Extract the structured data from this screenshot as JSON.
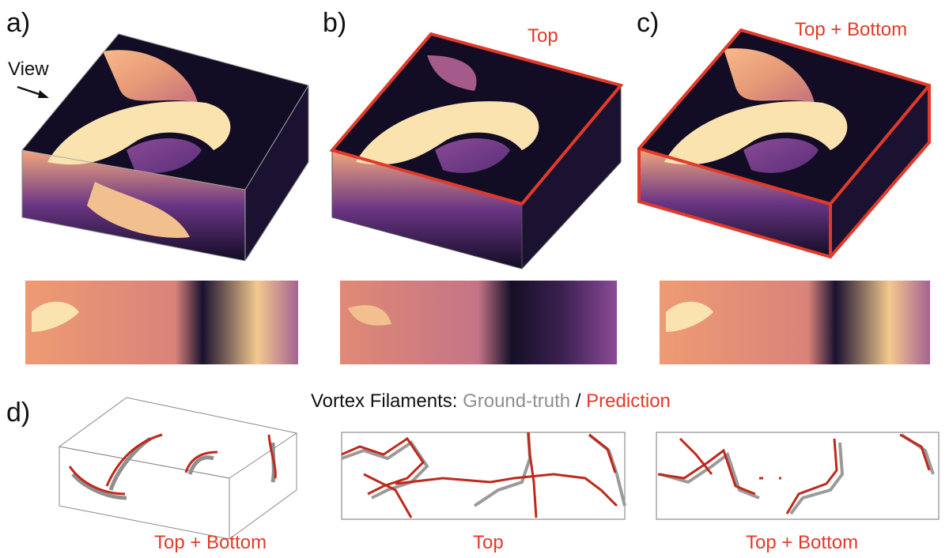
{
  "panel_labels": {
    "a": "a)",
    "b": "b)",
    "c": "c)",
    "d": "d)"
  },
  "view_label": "View",
  "captions": {
    "b_top": "Top",
    "c_top": "Top + Bottom",
    "d_box": "Top + Bottom",
    "d_mid": "Top",
    "d_right": "Top + Bottom"
  },
  "legend": {
    "prefix": "Vortex Filaments:",
    "ground_truth": "Ground-truth",
    "separator": "/",
    "prediction": "Prediction"
  },
  "colors": {
    "highlight": "#e23a2a",
    "ground_truth": "#8f8f8f",
    "prediction": "#c0281c",
    "field_low": "#0d0a1e",
    "field_mid": "#7a3e8c",
    "field_high": "#fbe3b0"
  }
}
